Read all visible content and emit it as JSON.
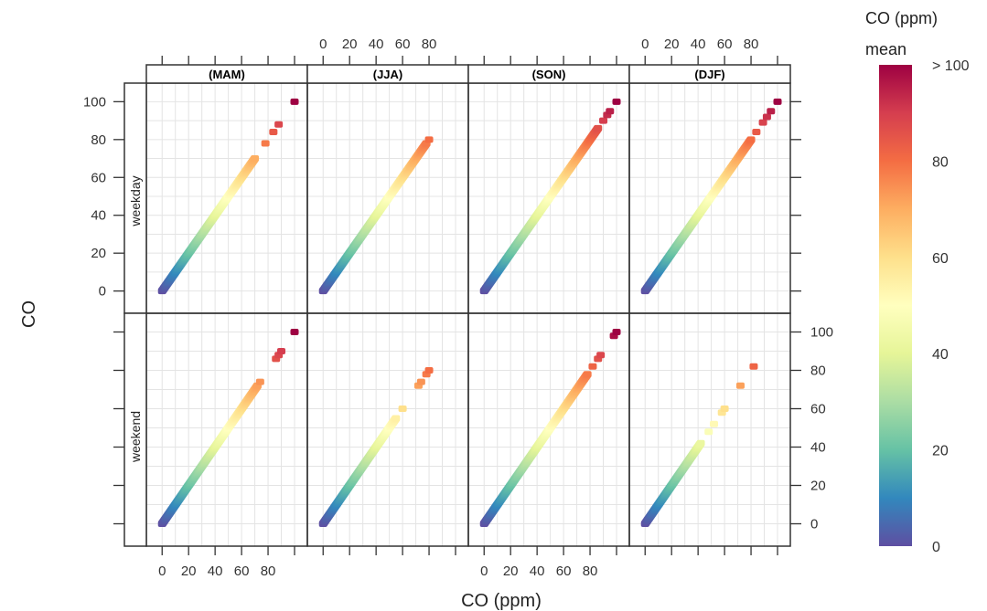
{
  "chart_data": {
    "type": "scatter",
    "xlabel": "CO (ppm)",
    "ylabel": "CO",
    "xlim": [
      -5,
      100
    ],
    "ylim": [
      -5,
      105
    ],
    "x_ticks": [
      0,
      20,
      40,
      60,
      80
    ],
    "y_ticks": [
      0,
      20,
      40,
      60,
      80,
      100
    ],
    "columns": [
      "(MAM)",
      "(JJA)",
      "(SON)",
      "(DJF)"
    ],
    "rows": [
      "weekday",
      "weekend"
    ],
    "grid": true,
    "legend": {
      "title_line1": "CO (ppm)",
      "title_line2": "mean",
      "position": "right",
      "type": "colorbar",
      "range": [
        0,
        100
      ],
      "ticks": [
        "0",
        "20",
        "40",
        "60",
        "80",
        "> 100"
      ],
      "colors": [
        "#5E4FA2",
        "#3288BD",
        "#66C2A5",
        "#ABDDA4",
        "#E6F598",
        "#FFFFBF",
        "#FEE08B",
        "#FDAE61",
        "#F46D43",
        "#D53E4F",
        "#9E0142"
      ]
    },
    "panels": [
      {
        "row": "weekday",
        "column": "(MAM)",
        "segments": [
          [
            0,
            70
          ]
        ],
        "points": [
          78,
          84,
          88,
          100
        ]
      },
      {
        "row": "weekday",
        "column": "(JJA)",
        "segments": [
          [
            0,
            78
          ]
        ],
        "points": [
          80
        ]
      },
      {
        "row": "weekday",
        "column": "(SON)",
        "segments": [
          [
            0,
            86
          ]
        ],
        "points": [
          90,
          93,
          95,
          100
        ]
      },
      {
        "row": "weekday",
        "column": "(DJF)",
        "segments": [
          [
            0,
            80
          ]
        ],
        "points": [
          84,
          89,
          92,
          95,
          100
        ]
      },
      {
        "row": "weekend",
        "column": "(MAM)",
        "segments": [
          [
            0,
            72
          ]
        ],
        "points": [
          74,
          86,
          88,
          90,
          100
        ]
      },
      {
        "row": "weekend",
        "column": "(JJA)",
        "segments": [
          [
            0,
            55
          ]
        ],
        "points": [
          60,
          72,
          74,
          78,
          80
        ]
      },
      {
        "row": "weekend",
        "column": "(SON)",
        "segments": [
          [
            0,
            78
          ]
        ],
        "points": [
          82,
          86,
          88,
          98,
          100
        ]
      },
      {
        "row": "weekend",
        "column": "(DJF)",
        "segments": [
          [
            0,
            42
          ]
        ],
        "points": [
          48,
          52,
          58,
          60,
          72,
          82
        ]
      }
    ]
  }
}
